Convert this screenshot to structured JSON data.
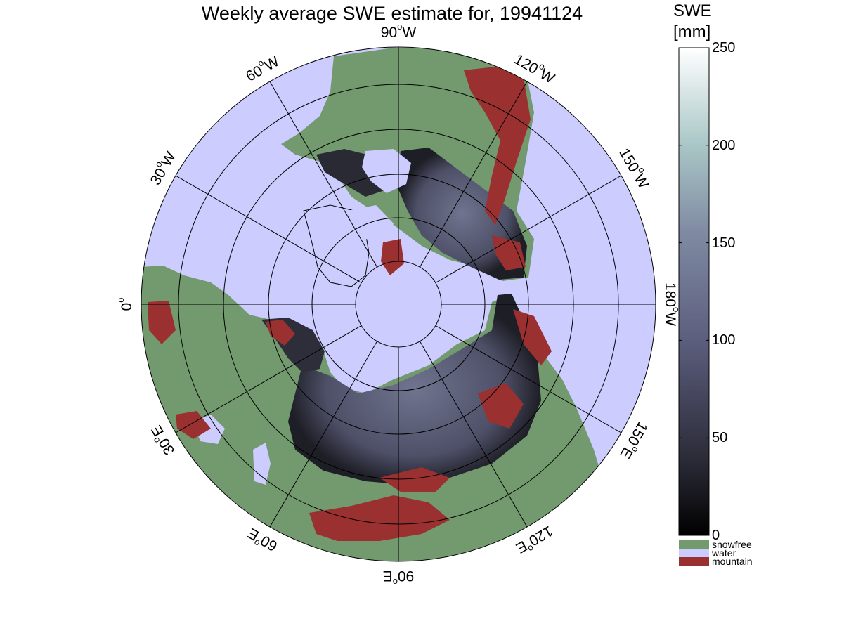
{
  "title": "Weekly average SWE estimate for, 19941124",
  "colorbar": {
    "label_line1": "SWE",
    "label_line2": "[mm]",
    "ticks": [
      "250",
      "200",
      "150",
      "100",
      "50",
      "0"
    ],
    "tick_values": [
      250,
      200,
      150,
      100,
      50,
      0
    ],
    "range": [
      0,
      250
    ],
    "colors": {
      "low": "#000000",
      "mid": "#5c5e7e",
      "high": "#ffffff"
    }
  },
  "legend": [
    {
      "label": "snowfree",
      "color": "#739a6e"
    },
    {
      "label": "water",
      "color": "#ccccff"
    },
    {
      "label": "mountain",
      "color": "#9a3030"
    }
  ],
  "map": {
    "projection": "north polar stereographic",
    "longitude_labels": [
      {
        "value": "90",
        "hemi": "W",
        "lon": -90
      },
      {
        "value": "120",
        "hemi": "W",
        "lon": -120
      },
      {
        "value": "150",
        "hemi": "W",
        "lon": -150
      },
      {
        "value": "180",
        "hemi": "W",
        "lon": 180
      },
      {
        "value": "150",
        "hemi": "E",
        "lon": 150
      },
      {
        "value": "120",
        "hemi": "E",
        "lon": 120
      },
      {
        "value": "90",
        "hemi": "E",
        "lon": 90
      },
      {
        "value": "60",
        "hemi": "E",
        "lon": 60
      },
      {
        "value": "30",
        "hemi": "E",
        "lon": 30
      },
      {
        "value": "0",
        "hemi": "",
        "lon": 0
      },
      {
        "value": "30",
        "hemi": "W",
        "lon": -30
      },
      {
        "value": "60",
        "hemi": "W",
        "lon": -60
      }
    ],
    "degree_symbol": "o",
    "colors": {
      "water": "#ccccff",
      "land": "#739a6e",
      "mountain": "#9a3030",
      "snow": "#5c5e7e",
      "snow_dark": "#1e1e26",
      "grid": "#000000"
    }
  }
}
